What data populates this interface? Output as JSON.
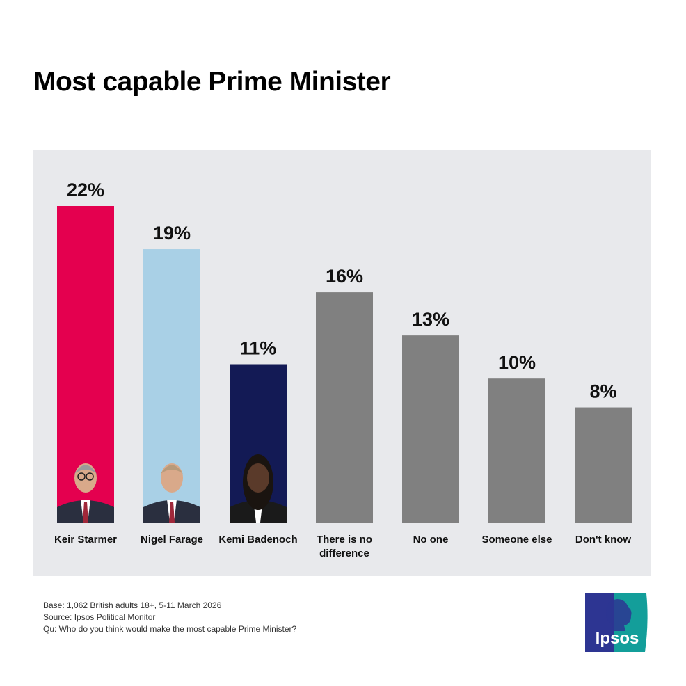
{
  "chart_data": {
    "type": "bar",
    "title": "Most capable Prime Minister",
    "categories": [
      [
        "Keir Starmer"
      ],
      [
        "Nigel Farage"
      ],
      [
        "Kemi Badenoch"
      ],
      [
        "There is no",
        "difference"
      ],
      [
        "No one"
      ],
      [
        "Someone else"
      ],
      [
        "Don't know"
      ]
    ],
    "values": [
      22,
      19,
      11,
      16,
      13,
      10,
      8
    ],
    "value_labels": [
      "22%",
      "19%",
      "11%",
      "16%",
      "13%",
      "10%",
      "8%"
    ],
    "colors": [
      "#e4004f",
      "#a9d0e6",
      "#131a55",
      "#808080",
      "#808080",
      "#808080",
      "#808080"
    ],
    "photos": [
      "keir-starmer-photo",
      "nigel-farage-photo",
      "kemi-badenoch-photo",
      null,
      null,
      null,
      null
    ],
    "ylim": [
      0,
      22
    ],
    "grid": false,
    "background": "#e8e9ec"
  },
  "footer": {
    "base": "Base: 1,062 British adults 18+, 5-11 March 2026",
    "source": "Source: Ipsos Political Monitor",
    "question": "Qu: Who do you think would make the most capable Prime Minister?"
  },
  "logo": {
    "text": "Ipsos",
    "colors": [
      "#2d3592",
      "#139e9a"
    ]
  }
}
